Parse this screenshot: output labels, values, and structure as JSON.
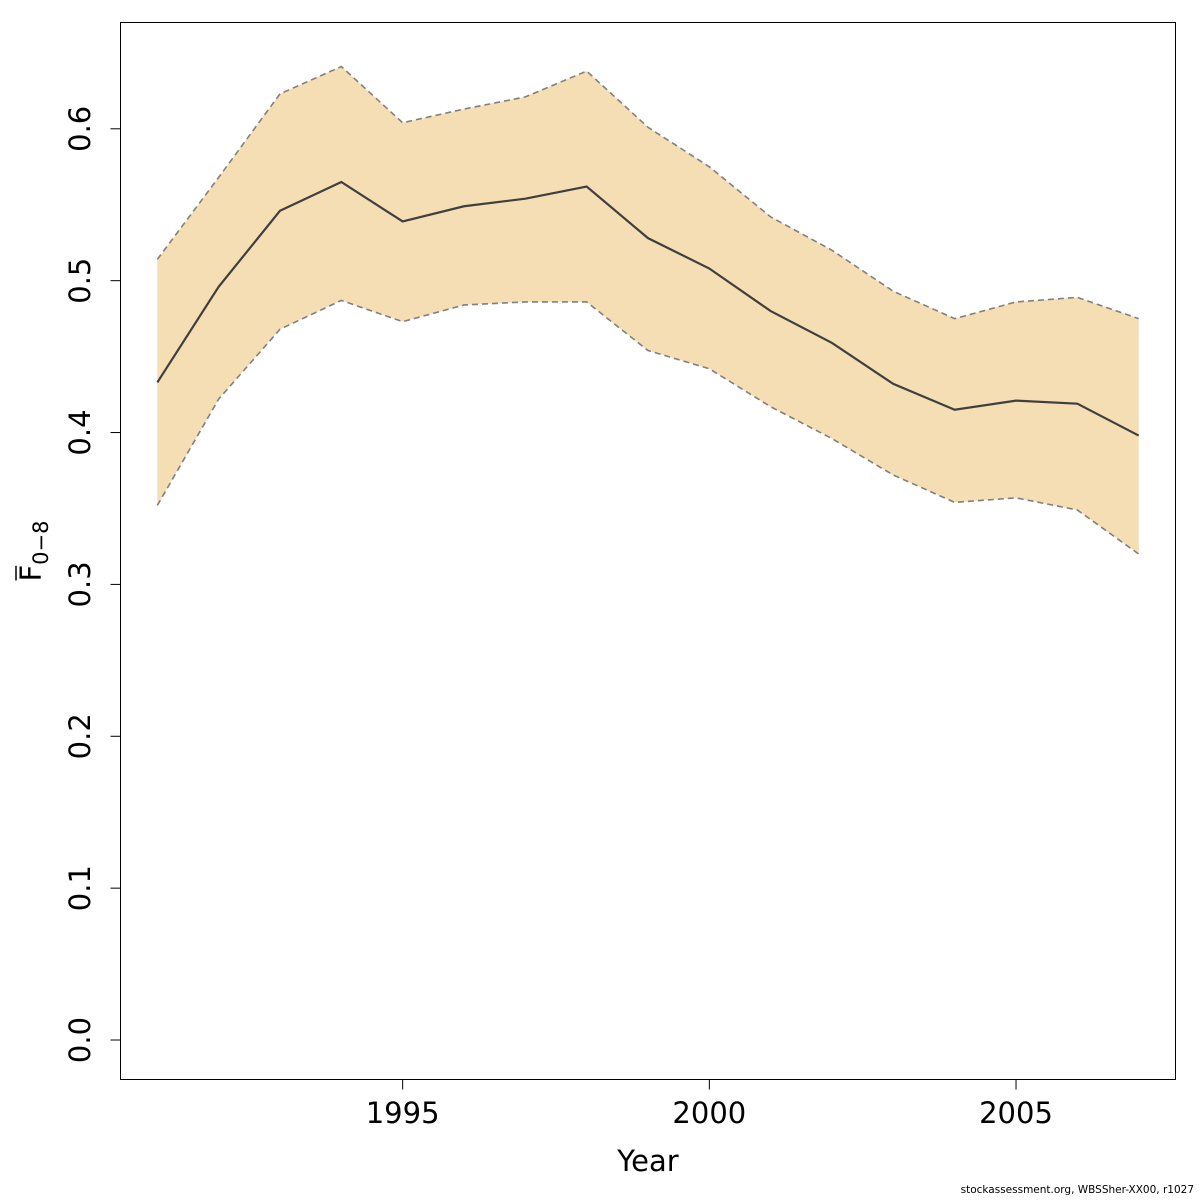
{
  "chart_data": {
    "type": "area",
    "title": "",
    "xlabel": "Year",
    "ylabel": {
      "main": "F",
      "subscript": "0−8",
      "overline": true
    },
    "xlim": [
      1990.4,
      2007.6
    ],
    "ylim": [
      -0.026,
      0.67
    ],
    "x_ticks": [
      1995,
      2000,
      2005
    ],
    "x_tick_labels": [
      "1995",
      "2000",
      "2005"
    ],
    "y_ticks": [
      0.0,
      0.1,
      0.2,
      0.3,
      0.4,
      0.5,
      0.6
    ],
    "y_tick_labels": [
      "0.0",
      "0.1",
      "0.2",
      "0.3",
      "0.4",
      "0.5",
      "0.6"
    ],
    "grid": false,
    "legend": "none",
    "x": [
      1991,
      1992,
      1993,
      1994,
      1995,
      1996,
      1997,
      1998,
      1999,
      2000,
      2001,
      2002,
      2003,
      2004,
      2005,
      2006,
      2007
    ],
    "series": [
      {
        "role": "estimate",
        "values": [
          0.433,
          0.496,
          0.546,
          0.565,
          0.539,
          0.549,
          0.554,
          0.562,
          0.528,
          0.508,
          0.48,
          0.459,
          0.432,
          0.415,
          0.421,
          0.419,
          0.398
        ]
      },
      {
        "role": "upper",
        "values": [
          0.514,
          0.568,
          0.623,
          0.641,
          0.604,
          0.613,
          0.621,
          0.638,
          0.601,
          0.575,
          0.542,
          0.52,
          0.493,
          0.475,
          0.486,
          0.489,
          0.475
        ]
      },
      {
        "role": "lower",
        "values": [
          0.352,
          0.422,
          0.468,
          0.487,
          0.473,
          0.484,
          0.486,
          0.486,
          0.454,
          0.442,
          0.417,
          0.396,
          0.372,
          0.354,
          0.357,
          0.349,
          0.32
        ]
      }
    ],
    "colors": {
      "band": "#f5deb3",
      "line": "#3f3f3f",
      "bounds": "#808080",
      "axis": "#000000"
    }
  },
  "footer": {
    "credit": "stockassessment.org, WBSSher-XX00, r1027"
  }
}
